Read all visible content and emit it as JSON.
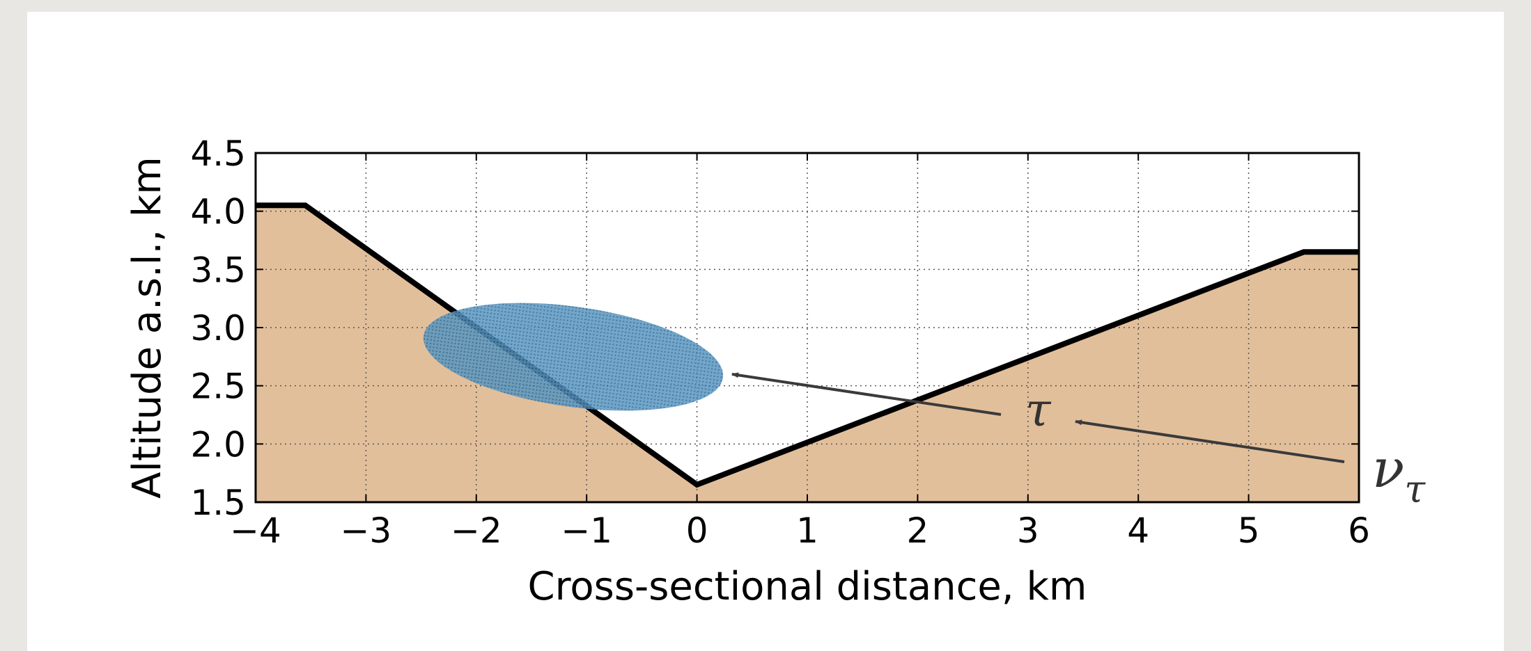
{
  "chart_data": {
    "type": "area",
    "x": [
      -4,
      -3.55,
      0,
      5.5,
      6
    ],
    "series": [
      {
        "values": [
          4.05,
          4.05,
          1.65,
          3.65,
          3.65
        ],
        "color": "#000000",
        "fill_color": "#e2bf9b"
      }
    ],
    "xlim": [
      -4,
      6
    ],
    "ylim": [
      1.5,
      4.5
    ],
    "xticks": [
      {
        "value": -4,
        "label": "−4"
      },
      {
        "value": -3,
        "label": "−3"
      },
      {
        "value": -2,
        "label": "−2"
      },
      {
        "value": -1,
        "label": "−1"
      },
      0,
      1,
      2,
      3,
      4,
      5,
      6
    ],
    "yticks": [
      1.5,
      {
        "value": 2,
        "label": "2.0"
      },
      2.5,
      {
        "value": 3,
        "label": "3.0"
      },
      3.5,
      {
        "value": 4,
        "label": "4.0"
      },
      4.5
    ],
    "xlabel": "Cross-sectional distance, km",
    "ylabel": "Altitude a.s.l., km",
    "grid": true,
    "annotations": [
      {
        "text": "τ"
      },
      {
        "text": "ν",
        "subscript": "τ"
      }
    ]
  }
}
